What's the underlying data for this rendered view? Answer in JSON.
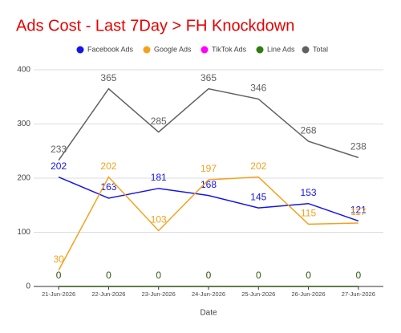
{
  "chart_data": {
    "type": "line",
    "title": "Ads Cost - Last 7Day > FH Knockdown",
    "x_label": "Date",
    "categories": [
      "21-Jun-2026",
      "22-Jun-2026",
      "23-Jun-2026",
      "24-Jun-2026",
      "25-Jun-2026",
      "26-Jun-2026",
      "27-Jun-2026"
    ],
    "series": [
      {
        "name": "Facebook Ads",
        "color": "#1515e6",
        "values": [
          202,
          163,
          181,
          168,
          145,
          153,
          121
        ]
      },
      {
        "name": "Google Ads",
        "color": "#f4a21d",
        "values": [
          30,
          202,
          103,
          197,
          202,
          115,
          117
        ]
      },
      {
        "name": "TikTok Ads",
        "color": "#ff00ff",
        "values": [
          0,
          0,
          0,
          0,
          0,
          0,
          0
        ]
      },
      {
        "name": "Line Ads",
        "color": "#2e7d12",
        "values": [
          0,
          0,
          0,
          0,
          0,
          0,
          0
        ]
      },
      {
        "name": "Total",
        "color": "#616161",
        "values": [
          233,
          365,
          285,
          365,
          346,
          268,
          238
        ]
      }
    ],
    "ylim": [
      0,
      400
    ],
    "yticks": [
      0,
      100,
      200,
      300,
      400
    ],
    "grid": true
  }
}
